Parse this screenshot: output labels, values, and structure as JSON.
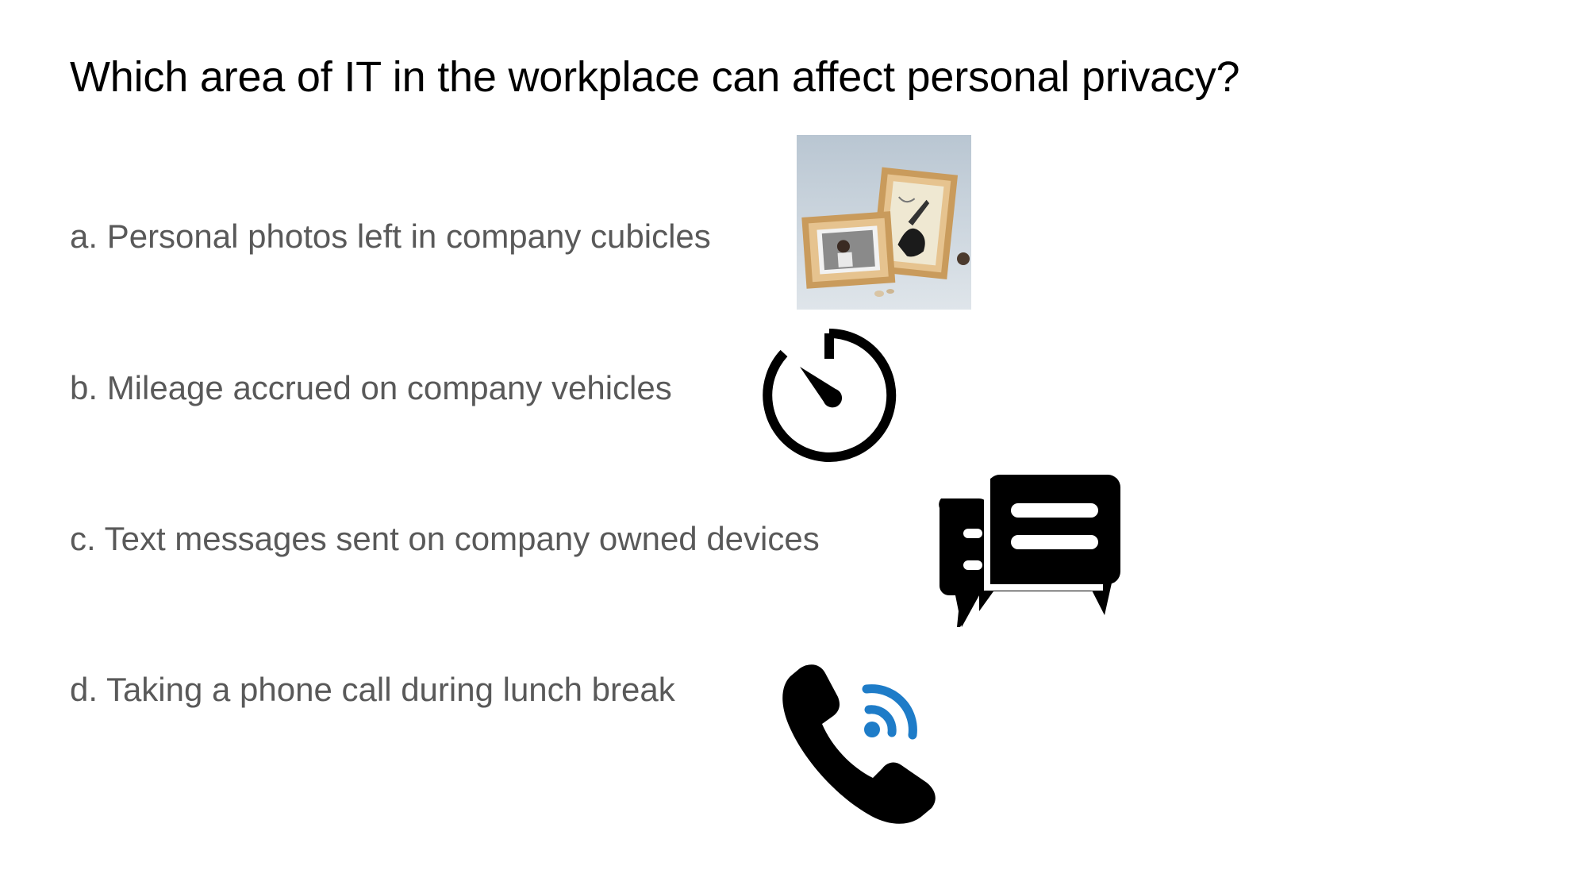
{
  "slide": {
    "title": "Which area of IT in the workplace can affect personal privacy?",
    "options": [
      {
        "label": "a. Personal photos left in company cubicles",
        "icon": "photo-frames-image"
      },
      {
        "label": "b. Mileage accrued on company vehicles",
        "icon": "speedometer-icon"
      },
      {
        "label": "c. Text messages sent on company owned devices",
        "icon": "chat-bubbles-icon"
      },
      {
        "label": "d. Taking a phone call during lunch break",
        "icon": "phone-call-icon"
      }
    ]
  },
  "colors": {
    "title": "#000000",
    "option_text": "#595959",
    "icon": "#000000",
    "signal_accent": "#1e7cc8"
  }
}
